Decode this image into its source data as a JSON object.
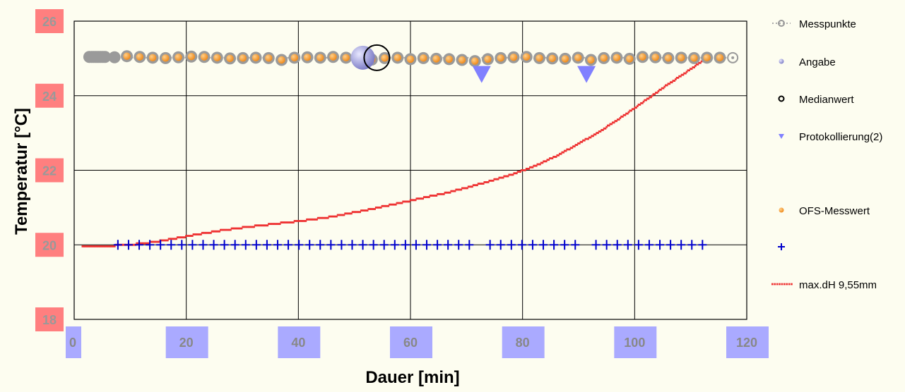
{
  "chart_data": {
    "type": "scatter",
    "xlabel": "Dauer [min]",
    "ylabel": "Temperatur [°C]",
    "xlim": [
      0,
      120
    ],
    "ylim": [
      18,
      26
    ],
    "x_ticks": [
      "0",
      "20",
      "40",
      "60",
      "80",
      "100",
      "120"
    ],
    "y_ticks": [
      "18",
      "20",
      "22",
      "24",
      "26"
    ],
    "grid": true,
    "legend_position": "right",
    "colors": {
      "background": "#fdfdf0",
      "messpunkte": "#9a9a9a",
      "angabe": "#8080c8",
      "protokoll": "#8080ff",
      "ofs": "#f08c1e",
      "plus": "#0000cc",
      "red": "#ee3333",
      "ytick_bg": "#ff7f7f",
      "xtick_bg": "#aaaaff"
    },
    "series": [
      {
        "name": "Messpunkte",
        "marker": "circle-grey",
        "x": [
          2.7,
          3.1,
          3.5,
          3.9,
          4.3,
          4.7,
          5.1,
          5.5,
          7.2,
          9.4,
          11.7,
          14.0,
          16.3,
          18.6,
          20.9,
          23.2,
          25.5,
          27.8,
          30.1,
          32.4,
          34.7,
          37.0,
          39.3,
          41.6,
          43.9,
          46.2,
          48.5,
          50.8,
          53.1,
          55.4,
          57.7,
          60.0,
          62.3,
          64.6,
          66.9,
          69.2,
          71.5,
          73.8,
          76.1,
          78.4,
          80.7,
          83.0,
          85.3,
          87.6,
          89.9,
          92.2,
          94.5,
          96.8,
          99.1,
          101.4,
          103.7,
          106.0,
          108.3,
          110.6,
          112.9,
          115.2,
          117.5
        ],
        "y": [
          25.04,
          25.04,
          25.04,
          25.04,
          25.04,
          25.04,
          25.04,
          25.04,
          25.03,
          25.06,
          25.04,
          25.02,
          25.01,
          25.03,
          25.05,
          25.04,
          25.02,
          25.0,
          25.01,
          25.02,
          25.01,
          24.96,
          25.02,
          25.03,
          25.02,
          25.04,
          25.02,
          25.01,
          24.97,
          25.01,
          25.02,
          24.98,
          25.01,
          24.99,
          24.98,
          24.96,
          24.93,
          24.98,
          25.01,
          25.03,
          25.04,
          25.01,
          25.0,
          24.99,
          25.02,
          24.96,
          25.01,
          25.02,
          24.99,
          25.04,
          25.03,
          25.01,
          25.02,
          25.01,
          25.02,
          25.02,
          25.02
        ]
      },
      {
        "name": "Angabe",
        "marker": "sphere-blue",
        "x": [
          51.5
        ],
        "y": [
          25.02
        ]
      },
      {
        "name": "Medianwert",
        "marker": "ring-black",
        "x": [
          54.0
        ],
        "y": [
          25.02
        ]
      },
      {
        "name": "Protokollierung(2)",
        "marker": "triangle-down",
        "x": [
          72.7,
          91.4
        ],
        "y": [
          24.57,
          24.57
        ]
      },
      {
        "name": "OFS-Messwert",
        "marker": "circle-orange",
        "x": [
          9.4,
          11.7,
          14.0,
          16.3,
          18.6,
          20.9,
          23.2,
          25.5,
          27.8,
          30.1,
          32.4,
          34.7,
          37.0,
          39.3,
          41.6,
          43.9,
          46.2,
          48.5,
          50.8,
          53.1,
          55.4,
          57.7,
          60.0,
          62.3,
          64.6,
          66.9,
          69.2,
          71.5,
          73.8,
          76.1,
          78.4,
          80.7,
          83.0,
          85.3,
          87.6,
          89.9,
          92.2,
          94.5,
          96.8,
          99.1,
          101.4,
          103.7,
          106.0,
          108.3,
          110.6,
          112.9,
          115.2
        ],
        "y": [
          25.06,
          25.04,
          25.02,
          25.01,
          25.03,
          25.05,
          25.04,
          25.02,
          25.0,
          25.01,
          25.02,
          25.01,
          24.96,
          25.02,
          25.03,
          25.02,
          25.04,
          25.02,
          25.01,
          24.97,
          25.01,
          25.02,
          24.98,
          25.01,
          24.99,
          24.98,
          24.96,
          24.93,
          24.98,
          25.01,
          25.03,
          25.04,
          25.01,
          25.0,
          24.99,
          25.02,
          24.96,
          25.01,
          25.02,
          24.99,
          25.04,
          25.03,
          25.01,
          25.02,
          25.01,
          25.02,
          25.02
        ]
      },
      {
        "name": "",
        "marker": "plus-blue",
        "x": [
          7.8,
          9.7,
          11.6,
          13.5,
          15.4,
          17.3,
          19.2,
          21.1,
          23.0,
          24.9,
          26.8,
          28.7,
          30.6,
          32.5,
          34.4,
          36.3,
          38.2,
          40.1,
          42.0,
          43.9,
          45.8,
          47.7,
          49.6,
          51.5,
          53.4,
          55.3,
          57.2,
          59.1,
          61.0,
          62.9,
          64.8,
          66.7,
          68.6,
          70.5,
          74.2,
          76.1,
          78.0,
          79.9,
          81.8,
          83.7,
          85.6,
          87.5,
          89.4,
          93.1,
          95.0,
          96.9,
          98.8,
          100.7,
          102.6,
          104.5,
          106.4,
          108.3,
          110.2,
          112.1
        ],
        "y": [
          20.0,
          20.0,
          20.0,
          20.0,
          20.0,
          20.0,
          20.0,
          20.0,
          20.0,
          20.0,
          20.0,
          20.0,
          20.0,
          20.0,
          20.0,
          20.0,
          20.0,
          20.0,
          20.0,
          20.0,
          20.0,
          20.0,
          20.0,
          20.0,
          20.0,
          20.0,
          20.0,
          20.0,
          20.0,
          20.0,
          20.0,
          20.0,
          20.0,
          20.0,
          20.0,
          20.0,
          20.0,
          20.0,
          20.0,
          20.0,
          20.0,
          20.0,
          20.0,
          20.0,
          20.0,
          20.0,
          20.0,
          20.0,
          20.0,
          20.0,
          20.0,
          20.0,
          20.0,
          20.0
        ]
      },
      {
        "name": "max.dH 9,55mm",
        "marker": "dots-red",
        "x": [
          1.5,
          6,
          10,
          14,
          18,
          22,
          26,
          30,
          34,
          38,
          42,
          46,
          50,
          54,
          58,
          62,
          66,
          70,
          74,
          78,
          82,
          86,
          90,
          94,
          98,
          102,
          106,
          110,
          112
        ],
        "y": [
          19.96,
          19.97,
          20.0,
          20.07,
          20.17,
          20.28,
          20.38,
          20.46,
          20.53,
          20.6,
          20.67,
          20.75,
          20.87,
          20.99,
          21.12,
          21.25,
          21.38,
          21.53,
          21.7,
          21.88,
          22.1,
          22.38,
          22.71,
          23.06,
          23.46,
          23.88,
          24.31,
          24.71,
          24.92
        ]
      }
    ]
  }
}
